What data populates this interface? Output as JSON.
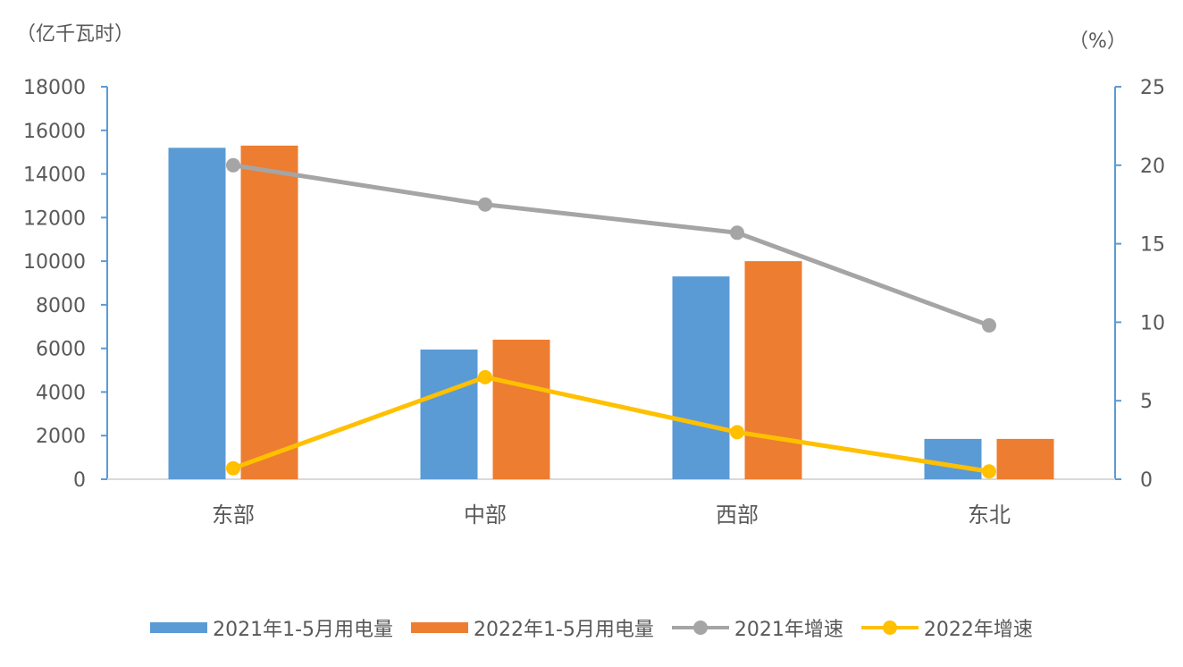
{
  "chart_data": {
    "type": "bar",
    "categories": [
      "东部",
      "中部",
      "西部",
      "东北"
    ],
    "y_left": {
      "unit_label": "（亿千瓦时）",
      "min": 0,
      "max": 18000,
      "step": 2000,
      "ticks": [
        "0",
        "2000",
        "4000",
        "6000",
        "8000",
        "10000",
        "12000",
        "14000",
        "16000",
        "18000"
      ]
    },
    "y_right": {
      "unit_label": "（%）",
      "min": 0,
      "max": 25,
      "step": 5,
      "ticks": [
        "0",
        "5",
        "10",
        "15",
        "20",
        "25"
      ]
    },
    "series": [
      {
        "name": "2021年1-5月用电量",
        "type": "bar",
        "axis": "left",
        "color": "#5B9BD5",
        "values": [
          15200,
          5950,
          9300,
          1850
        ]
      },
      {
        "name": "2022年1-5月用电量",
        "type": "bar",
        "axis": "left",
        "color": "#ED7D31",
        "values": [
          15300,
          6400,
          10000,
          1850
        ]
      },
      {
        "name": "2021年增速",
        "type": "line",
        "axis": "right",
        "color": "#A5A5A5",
        "values": [
          20.0,
          17.5,
          15.7,
          9.8
        ]
      },
      {
        "name": "2022年增速",
        "type": "line",
        "axis": "right",
        "color": "#FFC000",
        "values": [
          0.7,
          6.5,
          3.0,
          0.5
        ]
      }
    ],
    "grid": false,
    "legend_position": "bottom"
  }
}
